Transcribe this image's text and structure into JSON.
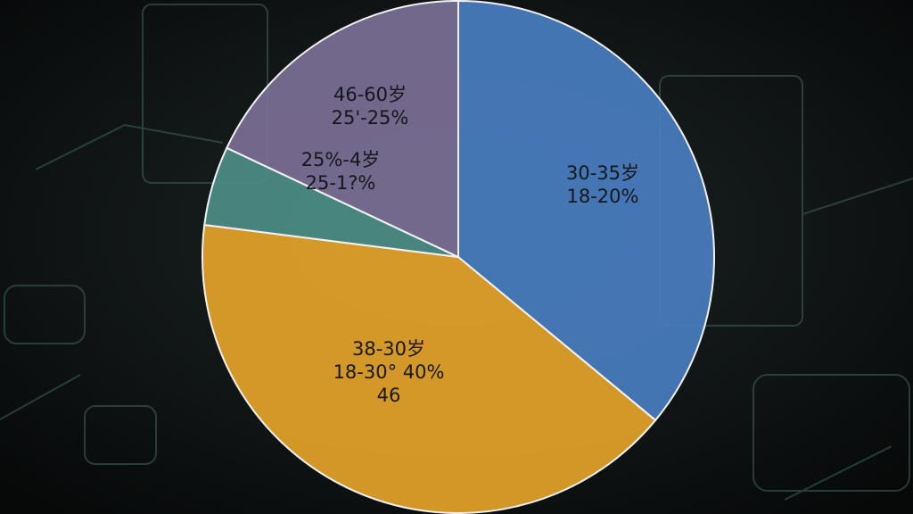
{
  "chart_data": {
    "type": "pie",
    "labels": [
      [
        "30-35岁",
        "18-20%"
      ],
      [
        "38-30岁",
        "18-30° 40%",
        "46"
      ],
      [
        "25%-4岁",
        "25-1?%"
      ],
      [
        "46-60岁",
        "25'-25%"
      ]
    ],
    "values": [
      36,
      41,
      5,
      18
    ],
    "colors": [
      "#4a80c4",
      "#e9a62a",
      "#4e9088",
      "#7d7199"
    ],
    "start_angle": 0,
    "direction": "clockwise"
  }
}
